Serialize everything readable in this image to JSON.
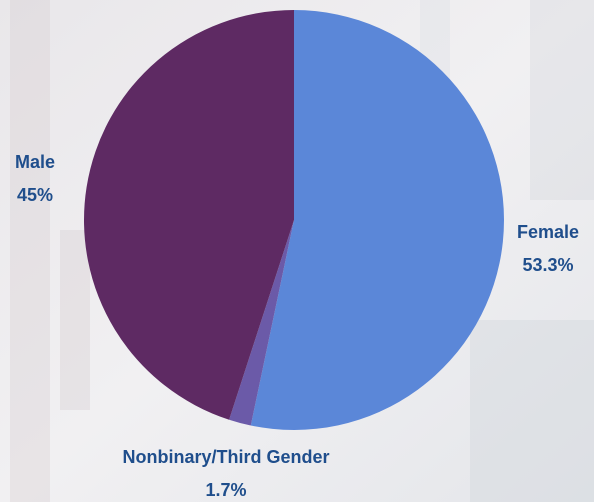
{
  "chart_data": {
    "type": "pie",
    "categories": [
      "Female",
      "Nonbinary/Third Gender",
      "Male"
    ],
    "values": [
      53.3,
      1.7,
      45
    ],
    "value_labels": [
      "53.3%",
      "1.7%",
      "45%"
    ],
    "colors": [
      "#5b87d8",
      "#6b5aa8",
      "#5e2a63"
    ]
  }
}
